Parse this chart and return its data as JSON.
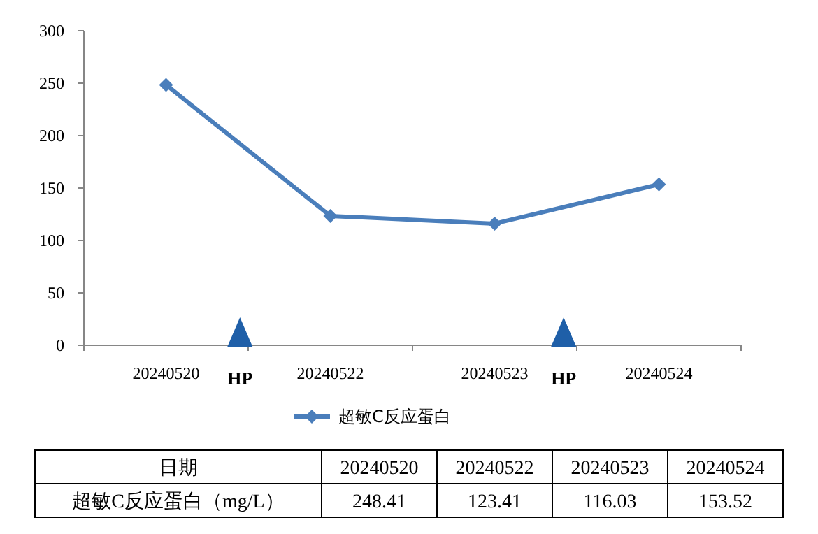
{
  "chart_data": {
    "type": "line",
    "categories": [
      "20240520",
      "20240522",
      "20240523",
      "20240524"
    ],
    "series": [
      {
        "name": "超敏C反应蛋白",
        "color": "#4a7ebb",
        "values": [
          248.41,
          123.41,
          116.03,
          153.52
        ]
      }
    ],
    "ylim": [
      0,
      300
    ],
    "yticks": [
      0,
      50,
      100,
      150,
      200,
      250,
      300
    ],
    "grid": false,
    "legend": "bottom",
    "marker": "diamond",
    "line_style": "solid",
    "annotations": [
      "HP",
      "HP",
      "日期",
      "超敏C反应蛋白（mg/L）",
      "248.41",
      "123.41",
      "116.03",
      "153.52"
    ]
  }
}
